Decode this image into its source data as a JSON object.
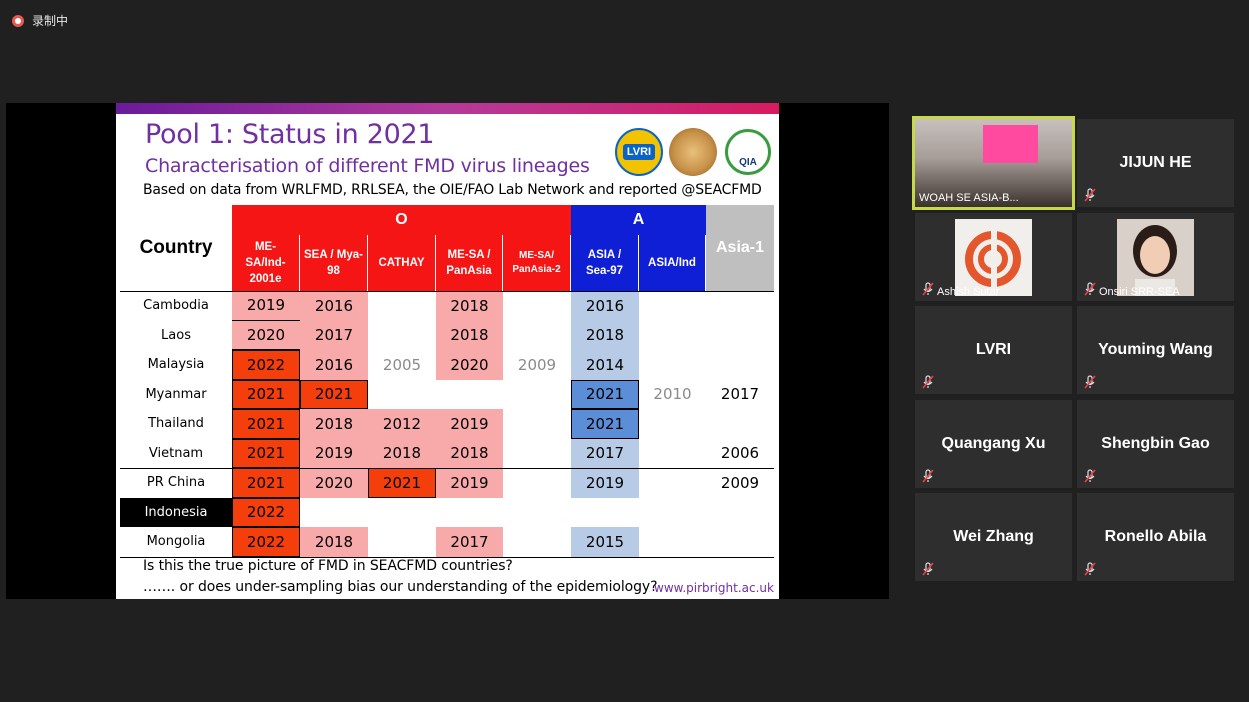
{
  "recording": {
    "label": "录制中"
  },
  "slide": {
    "title": "Pool 1: Status in 2021",
    "subtitle": "Characterisation of different FMD virus lineages",
    "source": "Based on data from WRLFMD, RRLSEA, the OIE/FAO Lab Network and reported @SEACFMD",
    "logos": {
      "lvri": "LVRI",
      "qia": "QIA"
    },
    "table": {
      "country_header": "Country",
      "groups": {
        "o": "O",
        "a": "A",
        "asia1": "Asia-1"
      },
      "lineages": [
        "ME-SA/Ind-2001e",
        "SEA / Mya-98",
        "CATHAY",
        "ME-SA / PanAsia",
        "ME-SA/ PanAsia-2",
        "ASIA / Sea-97",
        "ASIA/Ind"
      ],
      "rows": [
        {
          "country": "Cambodia",
          "cells": [
            "2019",
            "2016",
            "",
            "2018",
            "",
            "2016",
            "",
            ""
          ]
        },
        {
          "country": "Laos",
          "cells": [
            "2020",
            "2017",
            "",
            "2018",
            "",
            "2018",
            "",
            ""
          ]
        },
        {
          "country": "Malaysia",
          "cells": [
            "2022",
            "2016",
            "2005",
            "2020",
            "2009",
            "2014",
            "",
            ""
          ]
        },
        {
          "country": "Myanmar",
          "cells": [
            "2021",
            "2021",
            "",
            "",
            "",
            "2021",
            "2010",
            "2017"
          ]
        },
        {
          "country": "Thailand",
          "cells": [
            "2021",
            "2018",
            "2012",
            "2019",
            "",
            "2021",
            "",
            ""
          ]
        },
        {
          "country": "Vietnam",
          "cells": [
            "2021",
            "2019",
            "2018",
            "2018",
            "",
            "2017",
            "",
            "2006"
          ]
        },
        {
          "country": "PR China",
          "cells": [
            "2021",
            "2020",
            "2021",
            "2019",
            "",
            "2019",
            "",
            "2009"
          ]
        },
        {
          "country": "Indonesia",
          "cells": [
            "2022",
            "",
            "",
            "",
            "",
            "",
            "",
            ""
          ]
        },
        {
          "country": "Mongolia",
          "cells": [
            "2022",
            "2018",
            "",
            "2017",
            "",
            "2015",
            "",
            ""
          ]
        }
      ]
    },
    "question1": "Is this the true picture of FMD in SEACFMD countries?",
    "question2": "……. or does under-sampling bias our understanding of the epidemiology?",
    "url": "www.pirbright.ac.uk"
  },
  "participants": [
    {
      "name": "WOAH SE ASIA-B...",
      "type": "video"
    },
    {
      "name": "JIJUN HE",
      "type": "name"
    },
    {
      "name": "Ashish Sutar",
      "type": "avatar"
    },
    {
      "name": "Onsiri SRR-SEA",
      "type": "avatar"
    },
    {
      "name": "LVRI",
      "type": "name"
    },
    {
      "name": "Youming Wang",
      "type": "name"
    },
    {
      "name": "Quangang Xu",
      "type": "name"
    },
    {
      "name": "Shengbin Gao",
      "type": "name"
    },
    {
      "name": "Wei Zhang",
      "type": "name"
    },
    {
      "name": "Ronello Abila",
      "type": "name"
    }
  ]
}
